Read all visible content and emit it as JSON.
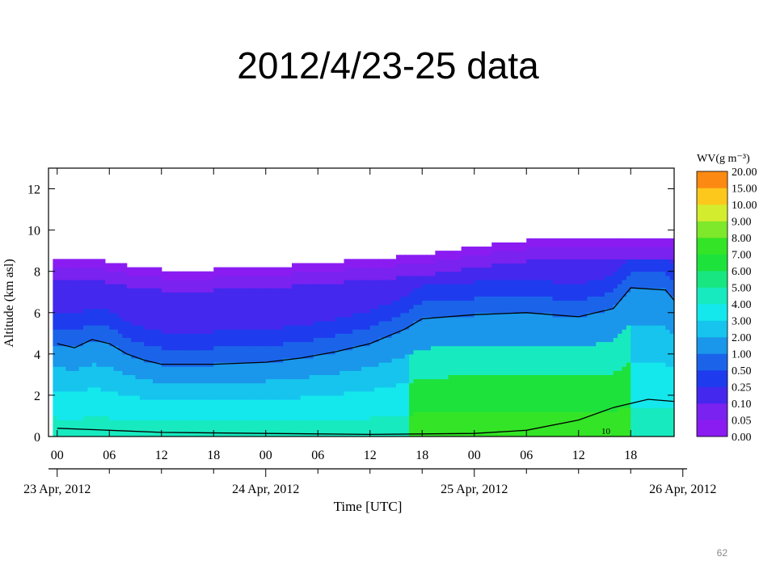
{
  "slide": {
    "title": "2012/4/23-25 data",
    "page_number": "62"
  },
  "chart_data": {
    "type": "heatmap",
    "title": "",
    "ylabel": "Altitude (km asl)",
    "xlabel": "Time [UTC]",
    "ylim": [
      0,
      13
    ],
    "xlim_hours": [
      -1,
      71
    ],
    "y_ticks": [
      "0",
      "2",
      "4",
      "6",
      "8",
      "10",
      "12"
    ],
    "x_ticks": [
      {
        "hour": 0,
        "label": "00"
      },
      {
        "hour": 6,
        "label": "06"
      },
      {
        "hour": 12,
        "label": "12"
      },
      {
        "hour": 18,
        "label": "18"
      },
      {
        "hour": 24,
        "label": "00"
      },
      {
        "hour": 30,
        "label": "06"
      },
      {
        "hour": 36,
        "label": "12"
      },
      {
        "hour": 42,
        "label": "18"
      },
      {
        "hour": 48,
        "label": "00"
      },
      {
        "hour": 54,
        "label": "06"
      },
      {
        "hour": 60,
        "label": "12"
      },
      {
        "hour": 66,
        "label": "18"
      }
    ],
    "date_labels": [
      {
        "hour": 0,
        "label": "23 Apr, 2012"
      },
      {
        "hour": 24,
        "label": "24 Apr, 2012"
      },
      {
        "hour": 48,
        "label": "25 Apr, 2012"
      },
      {
        "hour": 72,
        "label": "26 Apr, 2012"
      }
    ],
    "colorbar": {
      "title": "WV(g m⁻³)",
      "levels": [
        {
          "label": "0.00",
          "color": "#8a1cf2"
        },
        {
          "label": "0.05",
          "color": "#7a22f0"
        },
        {
          "label": "0.10",
          "color": "#4428ee"
        },
        {
          "label": "0.25",
          "color": "#1e3ced"
        },
        {
          "label": "0.50",
          "color": "#1b64ea"
        },
        {
          "label": "1.00",
          "color": "#1a96ea"
        },
        {
          "label": "2.00",
          "color": "#16c4ee"
        },
        {
          "label": "3.00",
          "color": "#14e8ec"
        },
        {
          "label": "4.00",
          "color": "#18eac0"
        },
        {
          "label": "5.00",
          "color": "#18e680"
        },
        {
          "label": "6.00",
          "color": "#1ee23c"
        },
        {
          "label": "7.00",
          "color": "#34e426"
        },
        {
          "label": "8.00",
          "color": "#7ee82a"
        },
        {
          "label": "9.00",
          "color": "#d4ec2e"
        },
        {
          "label": "10.00",
          "color": "#fcc81c"
        },
        {
          "label": "15.00",
          "color": "#fc8a12"
        },
        {
          "label": "20.00",
          "color": "#fc400e"
        }
      ]
    },
    "annotations": [
      "10"
    ],
    "top_of_data_km": [
      [
        0,
        8.5
      ],
      [
        4,
        8.5
      ],
      [
        8,
        8.2
      ],
      [
        12,
        8.0
      ],
      [
        18,
        8.0
      ],
      [
        24,
        8.1
      ],
      [
        30,
        8.3
      ],
      [
        36,
        8.5
      ],
      [
        42,
        8.7
      ],
      [
        48,
        9.1
      ],
      [
        54,
        9.4
      ],
      [
        60,
        9.5
      ],
      [
        66,
        9.6
      ],
      [
        71,
        9.5
      ]
    ],
    "contour_1gm3_km": [
      [
        0,
        4.5
      ],
      [
        2,
        4.3
      ],
      [
        4,
        4.7
      ],
      [
        6,
        4.5
      ],
      [
        8,
        4.0
      ],
      [
        10,
        3.7
      ],
      [
        12,
        3.5
      ],
      [
        18,
        3.5
      ],
      [
        24,
        3.6
      ],
      [
        28,
        3.8
      ],
      [
        32,
        4.1
      ],
      [
        36,
        4.5
      ],
      [
        40,
        5.2
      ],
      [
        42,
        5.7
      ],
      [
        48,
        5.9
      ],
      [
        54,
        6.0
      ],
      [
        60,
        5.8
      ],
      [
        64,
        6.2
      ],
      [
        66,
        7.2
      ],
      [
        70,
        7.1
      ],
      [
        71,
        6.6
      ]
    ],
    "contour_10gm3_km": [
      [
        0,
        0.4
      ],
      [
        6,
        0.3
      ],
      [
        12,
        0.2
      ],
      [
        24,
        0.15
      ],
      [
        36,
        0.1
      ],
      [
        48,
        0.15
      ],
      [
        54,
        0.3
      ],
      [
        60,
        0.8
      ],
      [
        64,
        1.4
      ],
      [
        68,
        1.8
      ],
      [
        71,
        1.7
      ]
    ]
  }
}
